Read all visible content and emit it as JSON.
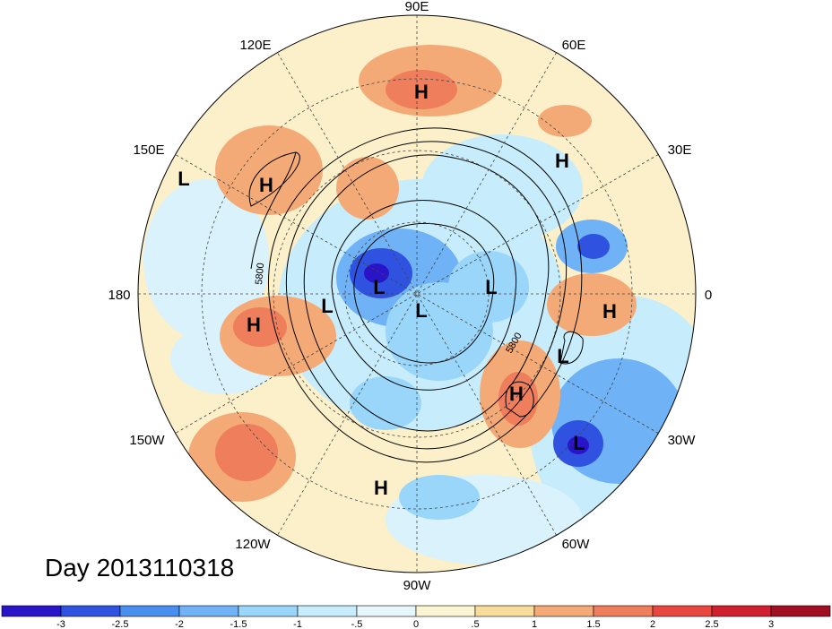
{
  "map": {
    "title": "Day 2013110318",
    "longitude_labels": [
      "90E",
      "60E",
      "30E",
      "0",
      "30W",
      "60W",
      "90W",
      "120W",
      "150W",
      "180",
      "150E",
      "120E"
    ],
    "contour_labels": [
      "5800",
      "5800"
    ],
    "pressure_centers": [
      {
        "type": "H",
        "name": "high-siberia"
      },
      {
        "type": "H",
        "name": "high-east-asia"
      },
      {
        "type": "H",
        "name": "high-north-pacific"
      },
      {
        "type": "H",
        "name": "high-europe"
      },
      {
        "type": "H",
        "name": "high-africa-west"
      },
      {
        "type": "H",
        "name": "high-north-atlantic"
      },
      {
        "type": "H",
        "name": "high-mexico"
      },
      {
        "type": "L",
        "name": "low-west-pacific"
      },
      {
        "type": "L",
        "name": "low-siberia-arctic"
      },
      {
        "type": "L",
        "name": "low-alaska"
      },
      {
        "type": "L",
        "name": "low-arctic-canada"
      },
      {
        "type": "L",
        "name": "low-greenland"
      },
      {
        "type": "L",
        "name": "low-east-atlantic"
      },
      {
        "type": "L",
        "name": "low-central-atlantic"
      }
    ]
  },
  "colorbar": {
    "ticks": [
      "-3",
      "-2.5",
      "-2",
      "-1.5",
      "-1",
      "-.5",
      "0",
      ".5",
      "1",
      "1.5",
      "2",
      "2.5",
      "3"
    ],
    "colors": [
      "#2a14c8",
      "#2f52e0",
      "#4a8ff0",
      "#6fb2f5",
      "#9ad6fa",
      "#c7ecfb",
      "#e6f7fc",
      "#fbf4d2",
      "#f7dc9c",
      "#f4aa76",
      "#ee7e5c",
      "#e8463e",
      "#d01f2f",
      "#a10f22"
    ]
  }
}
